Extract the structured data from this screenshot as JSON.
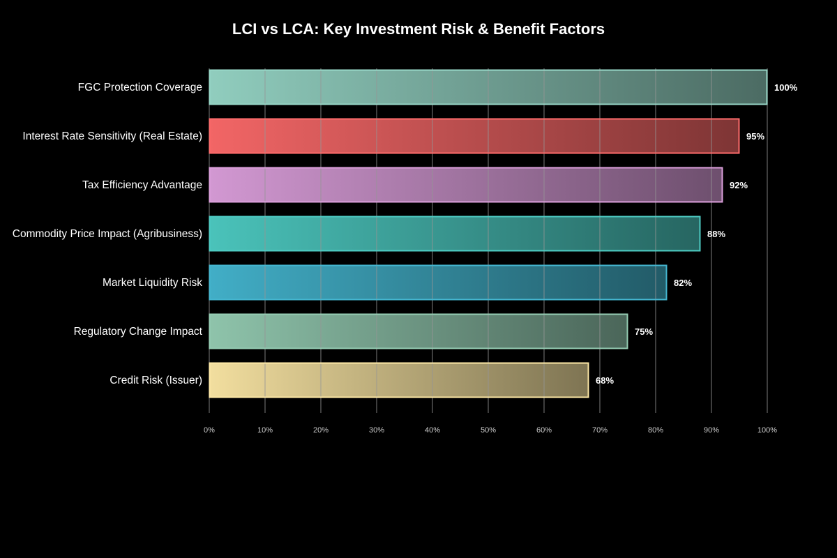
{
  "chart_data": {
    "type": "bar",
    "orientation": "horizontal",
    "title": "LCI vs LCA: Key Investment Risk & Benefit Factors",
    "xlabel": "",
    "ylabel": "",
    "xlim": [
      0,
      100
    ],
    "x_ticks": [
      0,
      10,
      20,
      30,
      40,
      50,
      60,
      70,
      80,
      90,
      100
    ],
    "x_tick_labels": [
      "0%",
      "10%",
      "20%",
      "30%",
      "40%",
      "50%",
      "60%",
      "70%",
      "80%",
      "90%",
      "100%"
    ],
    "grid": true,
    "legend": false,
    "categories": [
      "FGC Protection Coverage",
      "Interest Rate Sensitivity (Real Estate)",
      "Tax Efficiency Advantage",
      "Commodity Price Impact (Agribusiness)",
      "Market Liquidity Risk",
      "Regulatory Change Impact",
      "Credit Risk (Issuer)"
    ],
    "values": [
      100,
      95,
      92,
      88,
      82,
      75,
      68
    ],
    "value_labels": [
      "100%",
      "95%",
      "92%",
      "88%",
      "82%",
      "75%",
      "68%"
    ],
    "colors": [
      "#98D8C8",
      "#FF6B6B",
      "#DDA0DD",
      "#4ECDC4",
      "#45B7D1",
      "#96CEB4",
      "#FFEAA7"
    ]
  }
}
